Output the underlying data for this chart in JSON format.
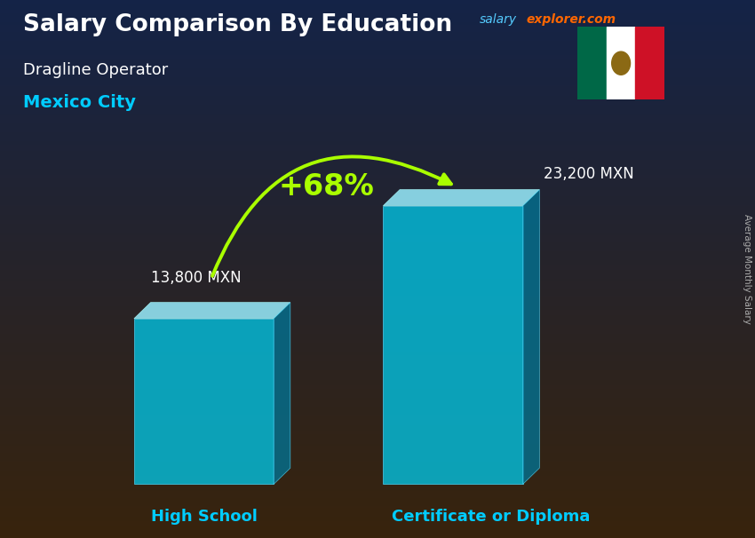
{
  "title_main": "Salary Comparison By Education",
  "title_salary": "salary",
  "title_explorer": "explorer.com",
  "subtitle_job": "Dragline Operator",
  "subtitle_city": "Mexico City",
  "categories": [
    "High School",
    "Certificate or Diploma"
  ],
  "values": [
    13800,
    23200
  ],
  "value_labels": [
    "13,800 MXN",
    "23,200 MXN"
  ],
  "pct_change": "+68%",
  "bar_face_color": "#00ccee",
  "bar_top_color": "#99eeff",
  "bar_side_color": "#007799",
  "bar_alpha": 0.75,
  "cat_label_color": "#00ccff",
  "val_label_color": "#ffffff",
  "pct_color": "#aaff00",
  "title_color": "#ffffff",
  "subtitle_job_color": "#ffffff",
  "subtitle_city_color": "#00ccff",
  "salary_text_color": "#aaaaaa",
  "explorer_color": "#ff6600",
  "arrow_color": "#aaff00",
  "side_label": "Average Monthly Salary",
  "ylabel_color": "#aaaaaa",
  "flag_green": "#006847",
  "flag_white": "#ffffff",
  "flag_red": "#ce1126"
}
